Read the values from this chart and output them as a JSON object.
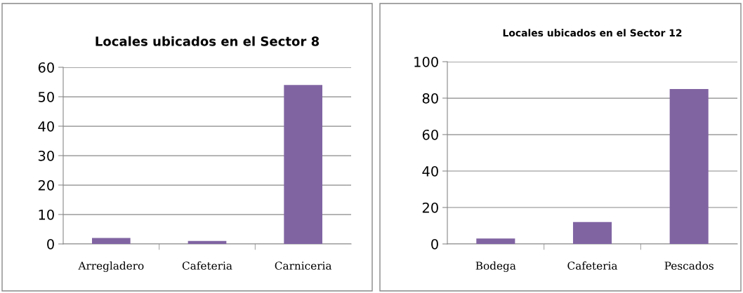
{
  "chart_data": [
    {
      "type": "bar",
      "title": "Locales ubicados en el Sector 8",
      "categories": [
        "Arregladero",
        "Cafeteria",
        "Carniceria"
      ],
      "values": [
        2,
        1,
        54
      ],
      "color": "#8064a2",
      "ylim": [
        0,
        60
      ],
      "yticks": [
        0,
        10,
        20,
        30,
        40,
        50,
        60
      ],
      "grid": "y",
      "legend": false
    },
    {
      "type": "bar",
      "title": "Locales ubicados en el Sector 12",
      "categories": [
        "Bodega",
        "Cafeteria",
        "Pescados"
      ],
      "values": [
        3,
        12,
        85
      ],
      "color": "#8064a2",
      "ylim": [
        0,
        100
      ],
      "yticks": [
        0,
        20,
        40,
        60,
        80,
        100
      ],
      "grid": "y",
      "legend": false
    }
  ]
}
